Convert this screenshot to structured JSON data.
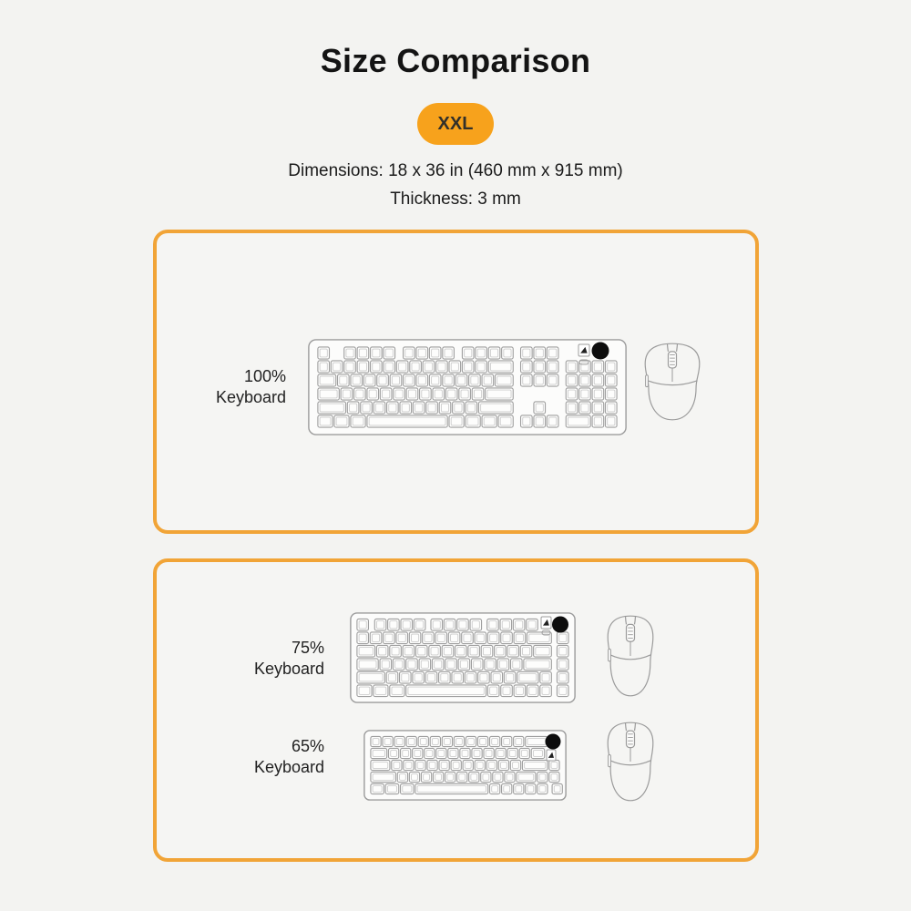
{
  "header": {
    "title": "Size Comparison",
    "badge_label": "XXL",
    "dimensions_line": "Dimensions: 18 x 36 in (460 mm x 915 mm)",
    "thickness_line": "Thickness: 3 mm"
  },
  "colors": {
    "background": "#F3F3F1",
    "pad_border_orange": "#F1A437",
    "badge_orange": "#F7A21C",
    "text_dark": "#1B1B1B",
    "outline_gray": "#9B9B9B",
    "knob_black": "#0D0D0D"
  },
  "pads": [
    {
      "name": "mousepad-outline-top",
      "rows": [
        {
          "percent": "100%",
          "label": "Keyboard",
          "keyboard_icon": "keyboard-100-illustration",
          "mouse_icon": "mouse-illustration"
        }
      ]
    },
    {
      "name": "mousepad-outline-bottom",
      "rows": [
        {
          "percent": "75%",
          "label": "Keyboard",
          "keyboard_icon": "keyboard-75-illustration",
          "mouse_icon": "mouse-illustration"
        },
        {
          "percent": "65%",
          "label": "Keyboard",
          "keyboard_icon": "keyboard-65-illustration",
          "mouse_icon": "mouse-illustration"
        }
      ]
    }
  ]
}
